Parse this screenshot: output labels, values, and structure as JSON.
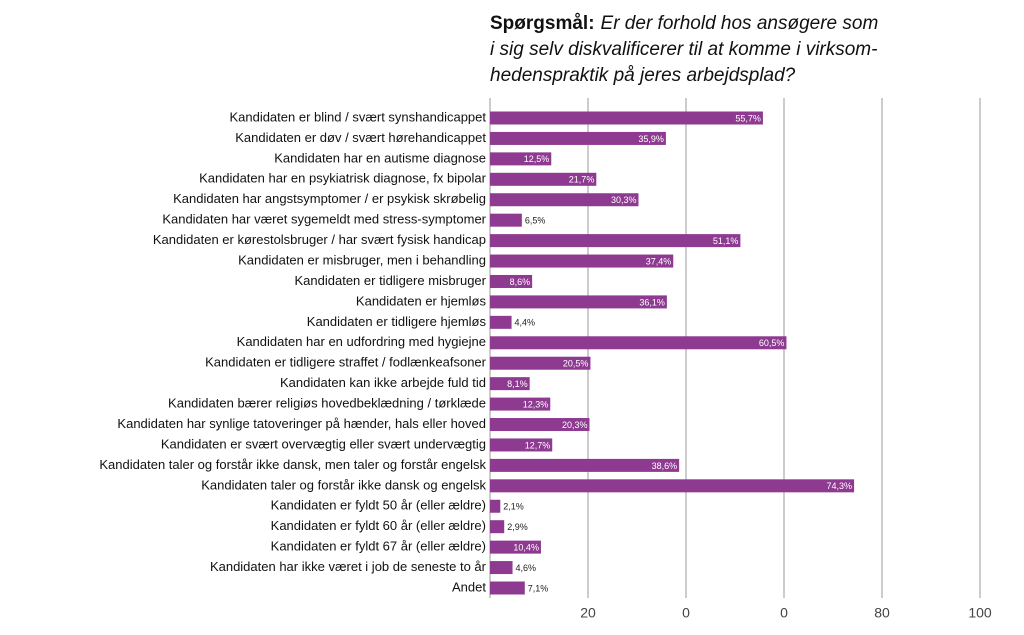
{
  "chart_data": {
    "type": "bar",
    "orientation": "horizontal",
    "title_label": "Spørgsmål:",
    "title": [
      "Er der forhold hos ansøgere som",
      "i sig selv diskvalificerer til at komme i virksom-",
      "hedenspraktik på jeres arbejdsplad?"
    ],
    "categories": [
      "Kandidaten er blind / svært synshandicappet",
      "Kandidaten er døv / svært hørehandicappet",
      "Kandidaten har en autisme diagnose",
      "Kandidaten har en psykiatrisk diagnose, fx bipolar",
      "Kandidaten har angstsymptomer / er psykisk skrøbelig",
      "Kandidaten har været sygemeldt med stress-symptomer",
      "Kandidaten er kørestolsbruger / har svært fysisk handicap",
      "Kandidaten er misbruger, men i behandling",
      "Kandidaten er tidligere misbruger",
      "Kandidaten er hjemløs",
      "Kandidaten er tidligere hjemløs",
      "Kandidaten har en udfordring med hygiejne",
      "Kandidaten er tidligere straffet / fodlænkeafsoner",
      "Kandidaten kan ikke arbejde fuld tid",
      "Kandidaten bærer religiøs hovedbeklædning / tørklæde",
      "Kandidaten har synlige tatoveringer på hænder, hals eller hoved",
      "Kandidaten er svært overvægtig eller svært undervægtig",
      "Kandidaten taler og forstår ikke dansk, men taler og forstår engelsk",
      "Kandidaten taler og forstår ikke dansk og engelsk",
      "Kandidaten er fyldt 50 år (eller ældre)",
      "Kandidaten er fyldt 60 år (eller ældre)",
      "Kandidaten er fyldt 67 år (eller ældre)",
      "Kandidaten har ikke været i job de seneste to år",
      "Andet"
    ],
    "values": [
      55.7,
      35.9,
      12.5,
      21.7,
      30.3,
      6.5,
      51.1,
      37.4,
      8.6,
      36.1,
      4.4,
      60.5,
      20.5,
      8.1,
      12.3,
      20.3,
      12.7,
      38.6,
      74.3,
      2.1,
      2.9,
      10.4,
      4.6,
      7.1
    ],
    "value_labels": [
      "55,7%",
      "35,9%",
      "12,5%",
      "21,7%",
      "30,3%",
      "6,5%",
      "51,1%",
      "37,4%",
      "8,6%",
      "36,1%",
      "4,4%",
      "60,5%",
      "20,5%",
      "8,1%",
      "12,3%",
      "20,3%",
      "12,7%",
      "38,6%",
      "74,3%",
      "2,1%",
      "2,9%",
      "10,4%",
      "4,6%",
      "7,1%"
    ],
    "color": "#8e3a91",
    "xlim": [
      0,
      100
    ],
    "xticks": [
      20,
      {
        "value": 40,
        "label": "0"
      },
      {
        "value": 60,
        "label": "0"
      },
      80,
      100
    ],
    "grid": true
  }
}
